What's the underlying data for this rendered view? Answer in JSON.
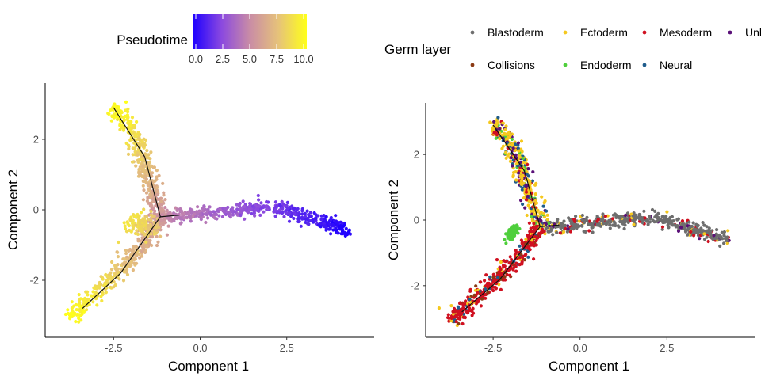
{
  "figure": {
    "colorbar": {
      "title": "Pseudotime",
      "ticks": [
        "0.0",
        "2.5",
        "5.0",
        "7.5",
        "10.0"
      ],
      "range": [
        0,
        10
      ],
      "colors": [
        "#1d00ff",
        "#8a48e0",
        "#c98ca6",
        "#e6c27a",
        "#ffff1a"
      ]
    },
    "legend": {
      "title": "Germ layer",
      "items": [
        {
          "label": "Blastoderm",
          "color": "#6e6e6e"
        },
        {
          "label": "Ectoderm",
          "color": "#f5c81e"
        },
        {
          "label": "Mesoderm",
          "color": "#d01020"
        },
        {
          "label": "Unl",
          "color": "#5a1078"
        },
        {
          "label": "Collisions",
          "color": "#8b3a14"
        },
        {
          "label": "Endoderm",
          "color": "#4fcf3c"
        },
        {
          "label": "Neural",
          "color": "#1f5c8c"
        }
      ]
    }
  },
  "chart_data": [
    {
      "type": "scatter",
      "xlabel": "Component 1",
      "ylabel": "Component 2",
      "xticks": [
        -2.5,
        0.0,
        2.5
      ],
      "xtick_labels": [
        "-2.5",
        "0.0",
        "2.5"
      ],
      "yticks": [
        2,
        0,
        -2
      ],
      "ytick_labels": [
        "2",
        "0",
        "-2"
      ],
      "xlim": [
        -4.35,
        4.75
      ],
      "ylim": [
        -3.55,
        3.55
      ],
      "grid": false,
      "color_by": "Pseudotime",
      "trajectory": [
        {
          "from": [
            -1.15,
            -0.2
          ],
          "to": [
            -1.6,
            1.5
          ]
        },
        {
          "from": [
            -1.6,
            1.5
          ],
          "to": [
            -2.5,
            2.9
          ]
        },
        {
          "from": [
            -1.15,
            -0.2
          ],
          "to": [
            -0.6,
            -0.15
          ]
        },
        {
          "from": [
            -1.15,
            -0.2
          ],
          "to": [
            -2.3,
            -1.8
          ]
        },
        {
          "from": [
            -2.3,
            -1.8
          ],
          "to": [
            -3.4,
            -2.8
          ]
        }
      ],
      "clouds": [
        {
          "path": [
            [
              -1.15,
              -0.2
            ],
            [
              0.2,
              -0.12
            ],
            [
              1.6,
              0.05
            ],
            [
              2.3,
              0.05
            ],
            [
              3.2,
              -0.25
            ],
            [
              4.3,
              -0.6
            ]
          ],
          "spread": 0.1,
          "n": 480,
          "t": [
            5.0,
            0.0
          ]
        },
        {
          "path": [
            [
              -1.15,
              -0.2
            ],
            [
              -1.5,
              0.9
            ],
            [
              -1.7,
              1.6
            ],
            [
              -2.0,
              2.3
            ],
            [
              -2.5,
              2.95
            ]
          ],
          "spread": 0.13,
          "n": 380,
          "t": [
            5.5,
            10.0
          ]
        },
        {
          "path": [
            [
              -1.15,
              -0.2
            ],
            [
              -1.6,
              -0.9
            ],
            [
              -2.3,
              -1.7
            ],
            [
              -3.0,
              -2.4
            ],
            [
              -3.75,
              -3.05
            ]
          ],
          "spread": 0.13,
          "n": 380,
          "t": [
            5.5,
            10.0
          ]
        },
        {
          "path": [
            [
              -1.25,
              -0.4
            ],
            [
              -1.75,
              -0.5
            ],
            [
              -2.05,
              -0.3
            ]
          ],
          "spread": 0.18,
          "n": 130,
          "t": [
            7.5,
            9.0
          ]
        }
      ]
    },
    {
      "type": "scatter",
      "xlabel": "Component 1",
      "ylabel": "Component 2",
      "xticks": [
        -2.5,
        0.0,
        2.5
      ],
      "xtick_labels": [
        "-2.5",
        "0.0",
        "2.5"
      ],
      "yticks": [
        2,
        0,
        -2
      ],
      "ytick_labels": [
        "2",
        "0",
        "-2"
      ],
      "xlim": [
        -4.35,
        4.75
      ],
      "ylim": [
        -3.55,
        3.55
      ],
      "grid": false,
      "color_by": "Germ layer",
      "trajectory": [
        {
          "from": [
            -1.15,
            -0.2
          ],
          "to": [
            -1.6,
            1.5
          ]
        },
        {
          "from": [
            -1.6,
            1.5
          ],
          "to": [
            -2.5,
            2.9
          ]
        },
        {
          "from": [
            -1.15,
            -0.2
          ],
          "to": [
            -0.6,
            -0.15
          ]
        },
        {
          "from": [
            -1.15,
            -0.2
          ],
          "to": [
            -2.3,
            -1.8
          ]
        },
        {
          "from": [
            -2.3,
            -1.8
          ],
          "to": [
            -3.4,
            -2.8
          ]
        }
      ],
      "clouds": [
        {
          "path": [
            [
              -1.15,
              -0.2
            ],
            [
              0.2,
              -0.12
            ],
            [
              1.6,
              0.05
            ],
            [
              2.3,
              0.05
            ],
            [
              3.2,
              -0.25
            ],
            [
              4.3,
              -0.6
            ]
          ],
          "spread": 0.1,
          "n": 480,
          "mix": {
            "Blastoderm": 0.78,
            "Mesoderm": 0.1,
            "Ectoderm": 0.07,
            "Unl": 0.05
          }
        },
        {
          "path": [
            [
              -1.15,
              -0.2
            ],
            [
              -1.5,
              0.9
            ],
            [
              -1.7,
              1.6
            ],
            [
              -2.0,
              2.3
            ],
            [
              -2.5,
              2.95
            ]
          ],
          "spread": 0.13,
          "n": 380,
          "mix": {
            "Ectoderm": 0.55,
            "Unl": 0.2,
            "Neural": 0.1,
            "Endoderm": 0.08,
            "Mesoderm": 0.07
          }
        },
        {
          "path": [
            [
              -1.15,
              -0.2
            ],
            [
              -1.6,
              -0.9
            ],
            [
              -2.3,
              -1.7
            ],
            [
              -3.0,
              -2.4
            ],
            [
              -3.75,
              -3.05
            ]
          ],
          "spread": 0.13,
          "n": 380,
          "mix": {
            "Mesoderm": 0.78,
            "Collisions": 0.1,
            "Neural": 0.07,
            "Ectoderm": 0.05
          }
        },
        {
          "path": [
            [
              -1.9,
              -0.4
            ],
            [
              -2.0,
              -0.35
            ]
          ],
          "spread": 0.12,
          "n": 110,
          "mix": {
            "Endoderm": 1.0
          }
        }
      ]
    }
  ]
}
